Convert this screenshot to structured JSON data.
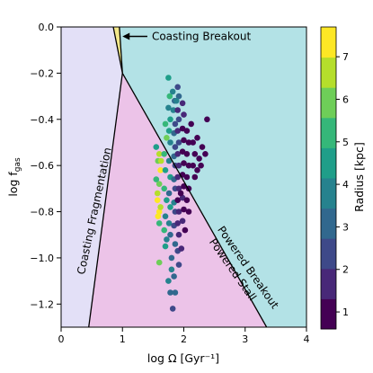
{
  "chart_data": {
    "type": "scatter",
    "xlabel": "log Ω [Gyr⁻¹]",
    "ylabel_main": "log f",
    "ylabel_sub": "gas",
    "xlim": [
      0,
      4
    ],
    "ylim": [
      -1.3,
      0.0
    ],
    "x_ticks": [
      0,
      1,
      2,
      3,
      4
    ],
    "x_tick_labels": [
      "0",
      "1",
      "2",
      "3",
      "4"
    ],
    "y_ticks": [
      0.0,
      -0.2,
      -0.4,
      -0.6,
      -0.8,
      -1.0,
      -1.2
    ],
    "y_tick_labels": [
      "0.0",
      "−0.2",
      "−0.4",
      "−0.6",
      "−0.8",
      "−1.0",
      "−1.2"
    ],
    "regions": [
      {
        "name": "Coasting Fragmentation",
        "color": "#e3e0f7"
      },
      {
        "name": "Powered Stall",
        "color": "#ecc3e8"
      },
      {
        "name": "Powered Breakout",
        "color": "#b3e2e6"
      },
      {
        "name": "Coasting Breakout",
        "color": "#f2e78a"
      }
    ],
    "boundaries": [
      {
        "from": [
          0.45,
          -1.3
        ],
        "to": [
          1.0,
          -0.2
        ]
      },
      {
        "from": [
          1.0,
          -0.2
        ],
        "to": [
          3.35,
          -1.3
        ]
      },
      {
        "from": [
          1.0,
          -0.2
        ],
        "to": [
          0.85,
          0.0
        ]
      },
      {
        "from": [
          1.0,
          -0.2
        ],
        "to": [
          0.95,
          0.0
        ]
      }
    ],
    "annotations": [
      {
        "text": "Coasting Breakout",
        "x": 1.45,
        "y": -0.045
      },
      {
        "text": "Coasting Fragmentation",
        "x": 0.6,
        "y": -0.8,
        "angle": -78
      },
      {
        "text": "Powered Breakout",
        "x": 3.0,
        "y": -1.05,
        "angle": 55
      },
      {
        "text": "Powered Stall",
        "x": 2.75,
        "y": -1.06,
        "angle": 55
      }
    ],
    "colorbar": {
      "label": "Radius [kpc]",
      "min": 0.6,
      "max": 7.7,
      "ticks": [
        1,
        2,
        3,
        4,
        5,
        6,
        7
      ],
      "tick_labels": [
        "1",
        "2",
        "3",
        "4",
        "5",
        "6",
        "7"
      ],
      "colors": [
        "#440154",
        "#482878",
        "#3e4989",
        "#31688e",
        "#26828e",
        "#1f9e89",
        "#35b779",
        "#6ece58",
        "#b5de2b",
        "#fde725"
      ]
    },
    "points": [
      {
        "x": 1.55,
        "y": -0.52,
        "r": 4.2
      },
      {
        "x": 1.6,
        "y": -0.55,
        "r": 6.3
      },
      {
        "x": 1.58,
        "y": -0.58,
        "r": 5.8
      },
      {
        "x": 1.62,
        "y": -0.62,
        "r": 7.2
      },
      {
        "x": 1.6,
        "y": -0.68,
        "r": 6.1
      },
      {
        "x": 1.57,
        "y": -0.75,
        "r": 7.5
      },
      {
        "x": 1.6,
        "y": -0.8,
        "r": 7.0
      },
      {
        "x": 1.58,
        "y": -0.82,
        "r": 7.6
      },
      {
        "x": 1.6,
        "y": -0.85,
        "r": 5.5
      },
      {
        "x": 1.57,
        "y": -0.72,
        "r": 6.8
      },
      {
        "x": 1.62,
        "y": -0.78,
        "r": 6.5
      },
      {
        "x": 1.63,
        "y": -0.58,
        "r": 6.7
      },
      {
        "x": 1.6,
        "y": -1.02,
        "r": 6.2
      },
      {
        "x": 1.55,
        "y": -0.66,
        "r": 5.2
      },
      {
        "x": 1.7,
        "y": -0.42,
        "r": 5.0
      },
      {
        "x": 1.72,
        "y": -0.48,
        "r": 5.6
      },
      {
        "x": 1.68,
        "y": -0.55,
        "r": 5.1
      },
      {
        "x": 1.7,
        "y": -0.62,
        "r": 4.6
      },
      {
        "x": 1.68,
        "y": -0.7,
        "r": 5.3
      },
      {
        "x": 1.72,
        "y": -0.75,
        "r": 4.4
      },
      {
        "x": 1.7,
        "y": -0.82,
        "r": 4.1
      },
      {
        "x": 1.68,
        "y": -0.88,
        "r": 5.4
      },
      {
        "x": 1.72,
        "y": -0.92,
        "r": 4.0
      },
      {
        "x": 1.7,
        "y": -0.95,
        "r": 4.5
      },
      {
        "x": 1.75,
        "y": -0.22,
        "r": 4.6
      },
      {
        "x": 1.77,
        "y": -0.3,
        "r": 4.9
      },
      {
        "x": 1.75,
        "y": -0.35,
        "r": 3.9
      },
      {
        "x": 1.78,
        "y": -0.4,
        "r": 4.3
      },
      {
        "x": 1.76,
        "y": -0.45,
        "r": 4.8
      },
      {
        "x": 1.78,
        "y": -0.5,
        "r": 3.6
      },
      {
        "x": 1.76,
        "y": -0.58,
        "r": 3.8
      },
      {
        "x": 1.78,
        "y": -0.65,
        "r": 4.7
      },
      {
        "x": 1.76,
        "y": -0.72,
        "r": 3.2
      },
      {
        "x": 1.78,
        "y": -0.78,
        "r": 4.2
      },
      {
        "x": 1.76,
        "y": -0.85,
        "r": 3.5
      },
      {
        "x": 1.78,
        "y": -0.9,
        "r": 2.8
      },
      {
        "x": 1.8,
        "y": -1.0,
        "r": 3.4
      },
      {
        "x": 1.8,
        "y": -1.05,
        "r": 3.9
      },
      {
        "x": 1.75,
        "y": -1.1,
        "r": 4.1
      },
      {
        "x": 1.78,
        "y": -1.15,
        "r": 3.3
      },
      {
        "x": 1.82,
        "y": -0.28,
        "r": 3.7
      },
      {
        "x": 1.85,
        "y": -0.32,
        "r": 3.0
      },
      {
        "x": 1.83,
        "y": -0.36,
        "r": 4.0
      },
      {
        "x": 1.86,
        "y": -0.42,
        "r": 2.7
      },
      {
        "x": 1.84,
        "y": -0.46,
        "r": 3.3
      },
      {
        "x": 1.86,
        "y": -0.52,
        "r": 2.5
      },
      {
        "x": 1.84,
        "y": -0.56,
        "r": 3.1
      },
      {
        "x": 1.86,
        "y": -0.6,
        "r": 2.2
      },
      {
        "x": 1.84,
        "y": -0.66,
        "r": 2.9
      },
      {
        "x": 1.86,
        "y": -0.7,
        "r": 2.4
      },
      {
        "x": 1.84,
        "y": -0.76,
        "r": 3.6
      },
      {
        "x": 1.86,
        "y": -0.8,
        "r": 2.1
      },
      {
        "x": 1.84,
        "y": -0.86,
        "r": 2.6
      },
      {
        "x": 1.86,
        "y": -0.94,
        "r": 3.2
      },
      {
        "x": 1.84,
        "y": -1.08,
        "r": 2.9
      },
      {
        "x": 1.86,
        "y": -1.15,
        "r": 3.1
      },
      {
        "x": 1.82,
        "y": -1.22,
        "r": 2.7
      },
      {
        "x": 1.9,
        "y": -0.26,
        "r": 2.6
      },
      {
        "x": 1.92,
        "y": -0.3,
        "r": 3.4
      },
      {
        "x": 1.9,
        "y": -0.36,
        "r": 2.0
      },
      {
        "x": 1.92,
        "y": -0.4,
        "r": 2.3
      },
      {
        "x": 1.9,
        "y": -0.45,
        "r": 1.8
      },
      {
        "x": 1.92,
        "y": -0.5,
        "r": 2.1
      },
      {
        "x": 1.9,
        "y": -0.55,
        "r": 1.6
      },
      {
        "x": 1.92,
        "y": -0.6,
        "r": 1.9
      },
      {
        "x": 1.9,
        "y": -0.65,
        "r": 1.4
      },
      {
        "x": 1.92,
        "y": -0.7,
        "r": 1.7
      },
      {
        "x": 1.9,
        "y": -0.75,
        "r": 1.3
      },
      {
        "x": 1.92,
        "y": -0.8,
        "r": 1.5
      },
      {
        "x": 1.9,
        "y": -0.85,
        "r": 2.0
      },
      {
        "x": 1.92,
        "y": -0.9,
        "r": 1.8
      },
      {
        "x": 1.9,
        "y": -0.97,
        "r": 2.2
      },
      {
        "x": 1.92,
        "y": -1.03,
        "r": 2.5
      },
      {
        "x": 1.98,
        "y": -0.33,
        "r": 1.5
      },
      {
        "x": 2.0,
        "y": -0.38,
        "r": 1.9
      },
      {
        "x": 1.98,
        "y": -0.44,
        "r": 1.2
      },
      {
        "x": 2.0,
        "y": -0.49,
        "r": 1.1
      },
      {
        "x": 1.98,
        "y": -0.54,
        "r": 1.3
      },
      {
        "x": 2.0,
        "y": -0.59,
        "r": 1.0
      },
      {
        "x": 1.98,
        "y": -0.64,
        "r": 1.2
      },
      {
        "x": 2.0,
        "y": -0.69,
        "r": 1.0
      },
      {
        "x": 1.98,
        "y": -0.74,
        "r": 1.4
      },
      {
        "x": 2.0,
        "y": -0.79,
        "r": 1.1
      },
      {
        "x": 1.98,
        "y": -0.84,
        "r": 1.6
      },
      {
        "x": 2.02,
        "y": -0.88,
        "r": 1.3
      },
      {
        "x": 2.05,
        "y": -0.45,
        "r": 1.0
      },
      {
        "x": 2.08,
        "y": -0.5,
        "r": 0.9
      },
      {
        "x": 2.05,
        "y": -0.55,
        "r": 1.0
      },
      {
        "x": 2.08,
        "y": -0.6,
        "r": 0.9
      },
      {
        "x": 2.05,
        "y": -0.65,
        "r": 1.0
      },
      {
        "x": 2.08,
        "y": -0.7,
        "r": 0.8
      },
      {
        "x": 2.05,
        "y": -0.75,
        "r": 1.1
      },
      {
        "x": 2.08,
        "y": -0.8,
        "r": 0.9
      },
      {
        "x": 2.15,
        "y": -0.5,
        "r": 0.9
      },
      {
        "x": 2.18,
        "y": -0.55,
        "r": 0.8
      },
      {
        "x": 2.15,
        "y": -0.6,
        "r": 0.9
      },
      {
        "x": 2.18,
        "y": -0.65,
        "r": 0.8
      },
      {
        "x": 2.22,
        "y": -0.48,
        "r": 0.9
      },
      {
        "x": 2.25,
        "y": -0.57,
        "r": 0.8
      },
      {
        "x": 2.22,
        "y": -0.62,
        "r": 0.9
      },
      {
        "x": 2.3,
        "y": -0.52,
        "r": 0.8
      },
      {
        "x": 2.28,
        "y": -0.6,
        "r": 0.9
      },
      {
        "x": 2.35,
        "y": -0.55,
        "r": 0.8
      },
      {
        "x": 2.38,
        "y": -0.4,
        "r": 0.9
      },
      {
        "x": 2.12,
        "y": -0.42,
        "r": 1.0
      },
      {
        "x": 1.95,
        "y": -0.72,
        "r": 1.2
      },
      {
        "x": 1.96,
        "y": -0.96,
        "r": 1.7
      },
      {
        "x": 1.88,
        "y": -0.32,
        "r": 3.8
      }
    ]
  }
}
